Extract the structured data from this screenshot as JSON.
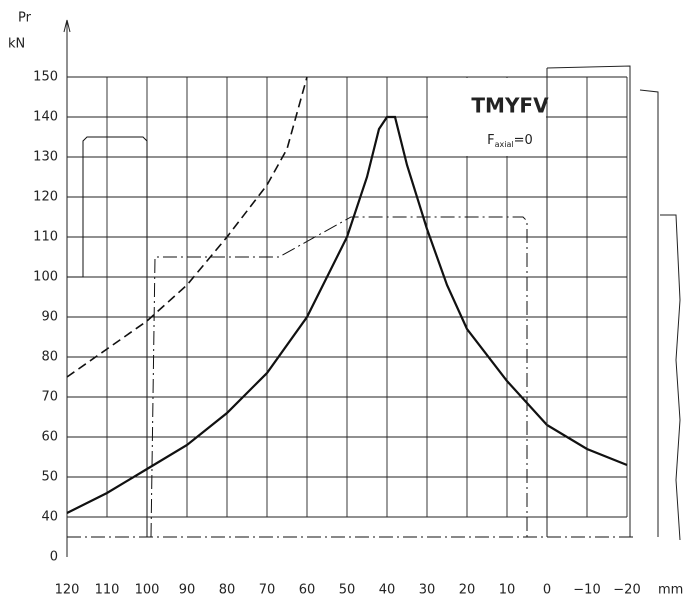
{
  "chart_data": {
    "type": "line",
    "y_label_top": "Pr",
    "y_label": "kN",
    "x_label": "mm",
    "box_title": "TMYFV",
    "annotation": {
      "text": "F",
      "subscript": "axial",
      "suffix": "=0"
    },
    "xlim": [
      122,
      -22
    ],
    "ylim": [
      0,
      150
    ],
    "y_break": [
      0,
      40
    ],
    "xticks": [
      120,
      110,
      100,
      90,
      80,
      70,
      60,
      50,
      40,
      30,
      20,
      10,
      0,
      {
        "value": -10,
        "label": "−10"
      },
      {
        "value": -20,
        "label": "−20"
      }
    ],
    "yticks": [
      0,
      40,
      50,
      60,
      70,
      80,
      90,
      100,
      110,
      120,
      130,
      140,
      150
    ],
    "grid": true,
    "series": [
      {
        "color": "#111",
        "style": "solid",
        "width": 2.2,
        "x": [
          120,
          110,
          100,
          90,
          80,
          70,
          60,
          50,
          45,
          42,
          40,
          38,
          35,
          30,
          25,
          20,
          10,
          0,
          -10,
          -20
        ],
        "values": [
          41,
          46,
          52,
          58,
          66,
          76,
          90,
          110,
          125,
          137,
          140,
          140,
          128,
          112,
          98,
          87,
          74,
          63,
          57,
          53
        ]
      },
      {
        "color": "#111",
        "style": "dashed",
        "width": 1.6,
        "x": [
          120,
          110,
          100,
          90,
          80,
          70,
          65,
          60
        ],
        "values": [
          75,
          82,
          89,
          98,
          110,
          123,
          132,
          150
        ]
      },
      {
        "color": "#111",
        "style": "solid",
        "width": 1,
        "x": [
          120,
          116,
          116,
          115,
          101,
          100,
          100
        ],
        "values": [
          100,
          100,
          134,
          135,
          135,
          134,
          20
        ]
      },
      {
        "color": "#111",
        "style": "dashdot",
        "width": 1,
        "x": [
          99,
          98,
          67,
          49,
          6,
          5,
          5
        ],
        "values": [
          20,
          105,
          105,
          115,
          115,
          114,
          20
        ]
      },
      {
        "color": "#111",
        "style": "dashdot",
        "width": 1,
        "x": [
          120,
          -22
        ],
        "values": [
          20,
          20
        ]
      }
    ]
  }
}
